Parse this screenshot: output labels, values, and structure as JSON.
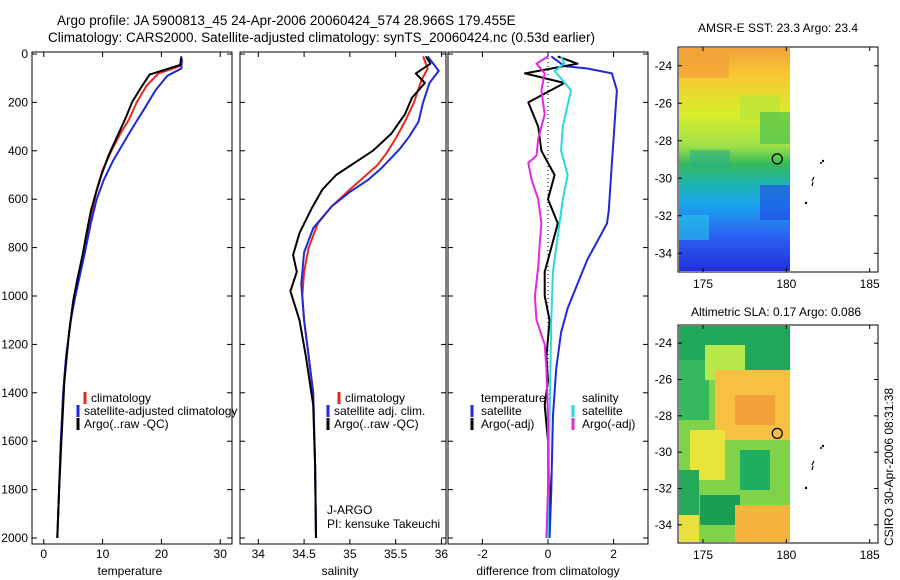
{
  "title_line1": "Argo profile: JA 5900813_45 24-Apr-2006 20060424_574 28.966S 179.455E",
  "title_line2": "Climatology: CARS2000. Satellite-adjusted climatology: synTS_20060424.nc (0.53d earlier)",
  "side_text": "CSIRO 30-Apr-2006 08:31:38",
  "pi_text": [
    "J-ARGO",
    "PI: kensuke Takeuchi"
  ],
  "colors": {
    "climatology": "#e8281e",
    "satellite": "#1f2ad6",
    "argo": "#000000",
    "cyan": "#27d8e0",
    "magenta": "#e029e0",
    "guide": "#000000"
  },
  "chart_data": [
    {
      "type": "line",
      "xlabel": "temperature",
      "ylim": [
        0,
        2080
      ],
      "yticks": [
        0,
        200,
        400,
        600,
        800,
        1000,
        1200,
        1400,
        1600,
        1800,
        2000
      ],
      "xlim": [
        -2,
        32
      ],
      "xticks": [
        0,
        10,
        20,
        30
      ],
      "y_inverted": true,
      "legend": [
        "climatology",
        "satellite-adjusted climatology",
        "Argo(..raw -QC)"
      ],
      "series": [
        {
          "name": "climatology",
          "color": "climatology",
          "x": [
            23.3,
            23.2,
            19.5,
            17.5,
            15.8,
            14.5,
            13,
            11.5,
            10,
            9,
            8.2,
            7,
            6.2,
            5.3,
            4.6,
            3.8,
            3.3,
            2.9,
            2.6,
            2.3
          ],
          "y": [
            20,
            50,
            80,
            130,
            200,
            270,
            330,
            400,
            480,
            560,
            650,
            800,
            900,
            1000,
            1100,
            1250,
            1400,
            1600,
            1800,
            2000
          ]
        },
        {
          "name": "satellite-adjusted climatology",
          "color": "satellite",
          "x": [
            23.5,
            23.4,
            21,
            19,
            17,
            15.2,
            13.5,
            11.8,
            10.2,
            9,
            8,
            7,
            6.1,
            5.3,
            4.6,
            3.8,
            3.3,
            2.9,
            2.6,
            2.3
          ],
          "y": [
            20,
            60,
            90,
            150,
            230,
            300,
            370,
            440,
            520,
            600,
            700,
            820,
            920,
            1010,
            1100,
            1250,
            1400,
            1600,
            1800,
            2000
          ]
        },
        {
          "name": "Argo(..raw -QC)",
          "color": "argo",
          "x": [
            23.4,
            23.2,
            18,
            16.5,
            15,
            14,
            12.5,
            11,
            9.8,
            8.8,
            8,
            7.2,
            6.6,
            5.8,
            5,
            4.3,
            3.5,
            3,
            2.6,
            2.3
          ],
          "y": [
            10,
            45,
            85,
            140,
            200,
            260,
            340,
            420,
            500,
            580,
            650,
            750,
            830,
            920,
            1020,
            1150,
            1350,
            1600,
            1800,
            2000
          ]
        }
      ]
    },
    {
      "type": "line",
      "xlabel": "salinity",
      "ylim": [
        0,
        2080
      ],
      "yticks": [
        0,
        200,
        400,
        600,
        800,
        1000,
        1200,
        1400,
        1600,
        1800,
        2000
      ],
      "xlim": [
        33.8,
        36.05
      ],
      "xticks": [
        34,
        34.5,
        35,
        35.5,
        36
      ],
      "y_inverted": true,
      "legend": [
        "climatology",
        "satellite adj. clim.",
        "Argo(..raw -QC)"
      ],
      "series": [
        {
          "name": "climatology",
          "color": "climatology",
          "x": [
            35.8,
            35.85,
            35.78,
            35.7,
            35.6,
            35.5,
            35.4,
            35.3,
            35.15,
            35,
            34.8,
            34.65,
            34.55,
            34.5,
            34.48,
            34.5,
            34.55,
            34.6,
            34.62,
            34.63
          ],
          "y": [
            10,
            60,
            110,
            200,
            280,
            350,
            410,
            460,
            510,
            560,
            630,
            700,
            800,
            900,
            1000,
            1100,
            1250,
            1400,
            1700,
            2000
          ]
        },
        {
          "name": "satellite adj. clim.",
          "color": "satellite",
          "x": [
            35.85,
            35.97,
            35.87,
            35.8,
            35.75,
            35.65,
            35.55,
            35.45,
            35.35,
            35.2,
            35,
            34.8,
            34.6,
            34.5,
            34.47,
            34.5,
            34.55,
            34.6,
            34.62,
            34.63
          ],
          "y": [
            10,
            70,
            120,
            200,
            280,
            340,
            390,
            430,
            470,
            520,
            570,
            630,
            720,
            820,
            950,
            1100,
            1250,
            1400,
            1700,
            2000
          ]
        },
        {
          "name": "Argo(..raw -QC)",
          "color": "argo",
          "x": [
            35.83,
            35.88,
            35.72,
            35.82,
            35.68,
            35.6,
            35.45,
            35.25,
            35.05,
            34.85,
            34.7,
            34.58,
            34.45,
            34.38,
            34.42,
            34.35,
            34.45,
            34.52,
            34.6,
            34.62,
            34.63
          ],
          "y": [
            10,
            40,
            80,
            120,
            180,
            250,
            330,
            400,
            450,
            500,
            560,
            640,
            740,
            830,
            900,
            980,
            1100,
            1250,
            1450,
            1700,
            2000
          ]
        }
      ]
    },
    {
      "type": "line",
      "xlabel": "difference from climatology",
      "ylim": [
        0,
        2080
      ],
      "yticks": [
        0,
        200,
        400,
        600,
        800,
        1000,
        1200,
        1400,
        1600,
        1800,
        2000
      ],
      "xlim": [
        -3.05,
        3.05
      ],
      "xticks": [
        -2,
        0,
        2
      ],
      "y_inverted": true,
      "zero_line": true,
      "legend_left": [
        "temperature",
        "satellite",
        "Argo(-adj)"
      ],
      "legend_right": [
        "salinity",
        "satellite",
        "Argo(-adj)"
      ],
      "series": [
        {
          "name": "temperature satellite",
          "color": "satellite",
          "x": [
            0.1,
            0.5,
            1.2,
            1.95,
            2.1,
            2.05,
            2.0,
            1.95,
            1.9,
            1.85,
            1.8,
            1.6,
            1.2,
            0.9,
            0.6,
            0.4,
            0.25,
            0.15,
            0.1,
            0.05
          ],
          "y": [
            10,
            50,
            60,
            80,
            150,
            250,
            350,
            450,
            550,
            650,
            700,
            750,
            850,
            950,
            1050,
            1150,
            1300,
            1500,
            1800,
            2000
          ]
        },
        {
          "name": "temperature Argo(-adj)",
          "color": "argo",
          "x": [
            0.3,
            0.9,
            -0.7,
            0.5,
            -0.6,
            -0.3,
            -0.2,
            0.2,
            0.0,
            0.3,
            0.1,
            -0.1,
            -0.1,
            0.05,
            -0.05,
            0.0,
            -0.1,
            0.0,
            0.05,
            0.0
          ],
          "y": [
            10,
            40,
            80,
            120,
            200,
            300,
            400,
            500,
            600,
            700,
            800,
            900,
            1000,
            1100,
            1250,
            1350,
            1450,
            1600,
            1800,
            2000
          ]
        },
        {
          "name": "salinity satellite",
          "color": "cyan",
          "x": [
            0.4,
            0.5,
            0.2,
            0.7,
            0.45,
            0.4,
            0.6,
            0.45,
            0.35,
            0.25,
            0.15,
            0.1,
            0.05,
            0.0
          ],
          "y": [
            10,
            40,
            70,
            150,
            300,
            400,
            500,
            600,
            700,
            800,
            900,
            1100,
            1500,
            2000
          ]
        },
        {
          "name": "salinity Argo(-adj)",
          "color": "magenta",
          "x": [
            0.0,
            -0.35,
            -0.1,
            -0.2,
            -0.1,
            -0.3,
            -0.35,
            -0.6,
            -0.5,
            -0.3,
            -0.2,
            -0.25,
            -0.3,
            -0.4,
            -0.35,
            -0.1,
            -0.05,
            0.0,
            0.0,
            -0.05
          ],
          "y": [
            10,
            40,
            80,
            150,
            250,
            350,
            420,
            450,
            520,
            600,
            700,
            780,
            880,
            1000,
            1100,
            1200,
            1300,
            1500,
            1800,
            2000
          ]
        }
      ]
    },
    {
      "type": "heatmap",
      "title": "AMSR-E SST: 23.3 Argo: 23.4",
      "xlim": [
        173.5,
        185.5
      ],
      "xticks": [
        175,
        180,
        185
      ],
      "ylim": [
        -35,
        -23
      ],
      "yticks": [
        -24,
        -26,
        -28,
        -30,
        -32,
        -34
      ],
      "marker": {
        "lon": 179.455,
        "lat": -28.966
      }
    },
    {
      "type": "heatmap",
      "title": "Altimetric SLA: 0.17 Argo: 0.086",
      "xlim": [
        173.5,
        185.5
      ],
      "xticks": [
        175,
        180,
        185
      ],
      "ylim": [
        -35,
        -23
      ],
      "yticks": [
        -24,
        -26,
        -28,
        -30,
        -32,
        -34
      ],
      "marker": {
        "lon": 179.455,
        "lat": -28.966
      }
    }
  ]
}
